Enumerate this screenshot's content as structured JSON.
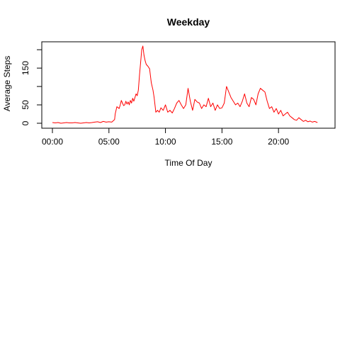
{
  "chart_data": {
    "type": "line",
    "title": "Weekday",
    "xlabel": "Time Of Day",
    "ylabel": "Average Steps",
    "x_unit": "hours",
    "xlim": [
      0,
      24
    ],
    "ylim": [
      0,
      210
    ],
    "x_ticks": [
      {
        "value": 0,
        "label": "00:00"
      },
      {
        "value": 5,
        "label": "05:00"
      },
      {
        "value": 10,
        "label": "10:00"
      },
      {
        "value": 15,
        "label": "15:00"
      },
      {
        "value": 20,
        "label": "20:00"
      }
    ],
    "y_ticks": [
      {
        "value": 0,
        "label": "0"
      },
      {
        "value": 50,
        "label": "50"
      },
      {
        "value": 150,
        "label": "150"
      }
    ],
    "y_minor_ticks": [
      100,
      200
    ],
    "grid": false,
    "legend": "none",
    "series": [
      {
        "color": "#ff0000",
        "x": [
          0.0,
          0.25,
          0.5,
          0.75,
          1.0,
          1.25,
          1.5,
          1.75,
          2.0,
          2.25,
          2.5,
          2.75,
          3.0,
          3.25,
          3.5,
          3.75,
          4.0,
          4.25,
          4.5,
          4.75,
          5.0,
          5.25,
          5.5,
          5.55,
          5.7,
          5.9,
          6.0,
          6.1,
          6.2,
          6.3,
          6.4,
          6.5,
          6.6,
          6.7,
          6.8,
          6.9,
          7.0,
          7.1,
          7.2,
          7.3,
          7.4,
          7.5,
          7.6,
          7.7,
          7.8,
          7.9,
          8.0,
          8.1,
          8.2,
          8.3,
          8.45,
          8.6,
          8.75,
          8.9,
          9.0,
          9.15,
          9.3,
          9.45,
          9.6,
          9.8,
          10.0,
          10.2,
          10.4,
          10.6,
          10.8,
          11.0,
          11.2,
          11.4,
          11.6,
          11.8,
          12.0,
          12.2,
          12.4,
          12.6,
          12.8,
          13.0,
          13.2,
          13.4,
          13.6,
          13.8,
          14.0,
          14.2,
          14.4,
          14.6,
          14.8,
          15.0,
          15.2,
          15.4,
          15.6,
          15.8,
          16.0,
          16.2,
          16.4,
          16.6,
          16.8,
          17.0,
          17.2,
          17.4,
          17.6,
          17.8,
          18.0,
          18.2,
          18.4,
          18.6,
          18.8,
          19.0,
          19.2,
          19.4,
          19.6,
          19.8,
          20.0,
          20.2,
          20.4,
          20.6,
          20.8,
          21.0,
          21.2,
          21.4,
          21.6,
          21.8,
          22.0,
          22.2,
          22.4,
          22.6,
          22.8,
          23.0,
          23.2,
          23.45
        ],
        "y": [
          2,
          1,
          2,
          0,
          1,
          2,
          1,
          1,
          2,
          1,
          0,
          1,
          2,
          1,
          2,
          3,
          4,
          2,
          5,
          3,
          4,
          3,
          10,
          25,
          45,
          40,
          50,
          62,
          55,
          48,
          50,
          60,
          52,
          58,
          50,
          62,
          55,
          68,
          60,
          70,
          80,
          75,
          90,
          130,
          165,
          200,
          210,
          185,
          170,
          160,
          155,
          148,
          110,
          90,
          70,
          30,
          35,
          30,
          42,
          35,
          50,
          30,
          35,
          28,
          40,
          55,
          62,
          50,
          40,
          50,
          95,
          60,
          35,
          65,
          58,
          55,
          40,
          50,
          45,
          68,
          45,
          55,
          35,
          50,
          40,
          42,
          55,
          100,
          85,
          70,
          60,
          50,
          55,
          45,
          60,
          80,
          55,
          45,
          70,
          65,
          50,
          80,
          95,
          90,
          85,
          60,
          40,
          45,
          30,
          40,
          25,
          35,
          20,
          25,
          30,
          20,
          15,
          10,
          8,
          15,
          10,
          5,
          8,
          4,
          6,
          3,
          5,
          2
        ]
      }
    ]
  }
}
